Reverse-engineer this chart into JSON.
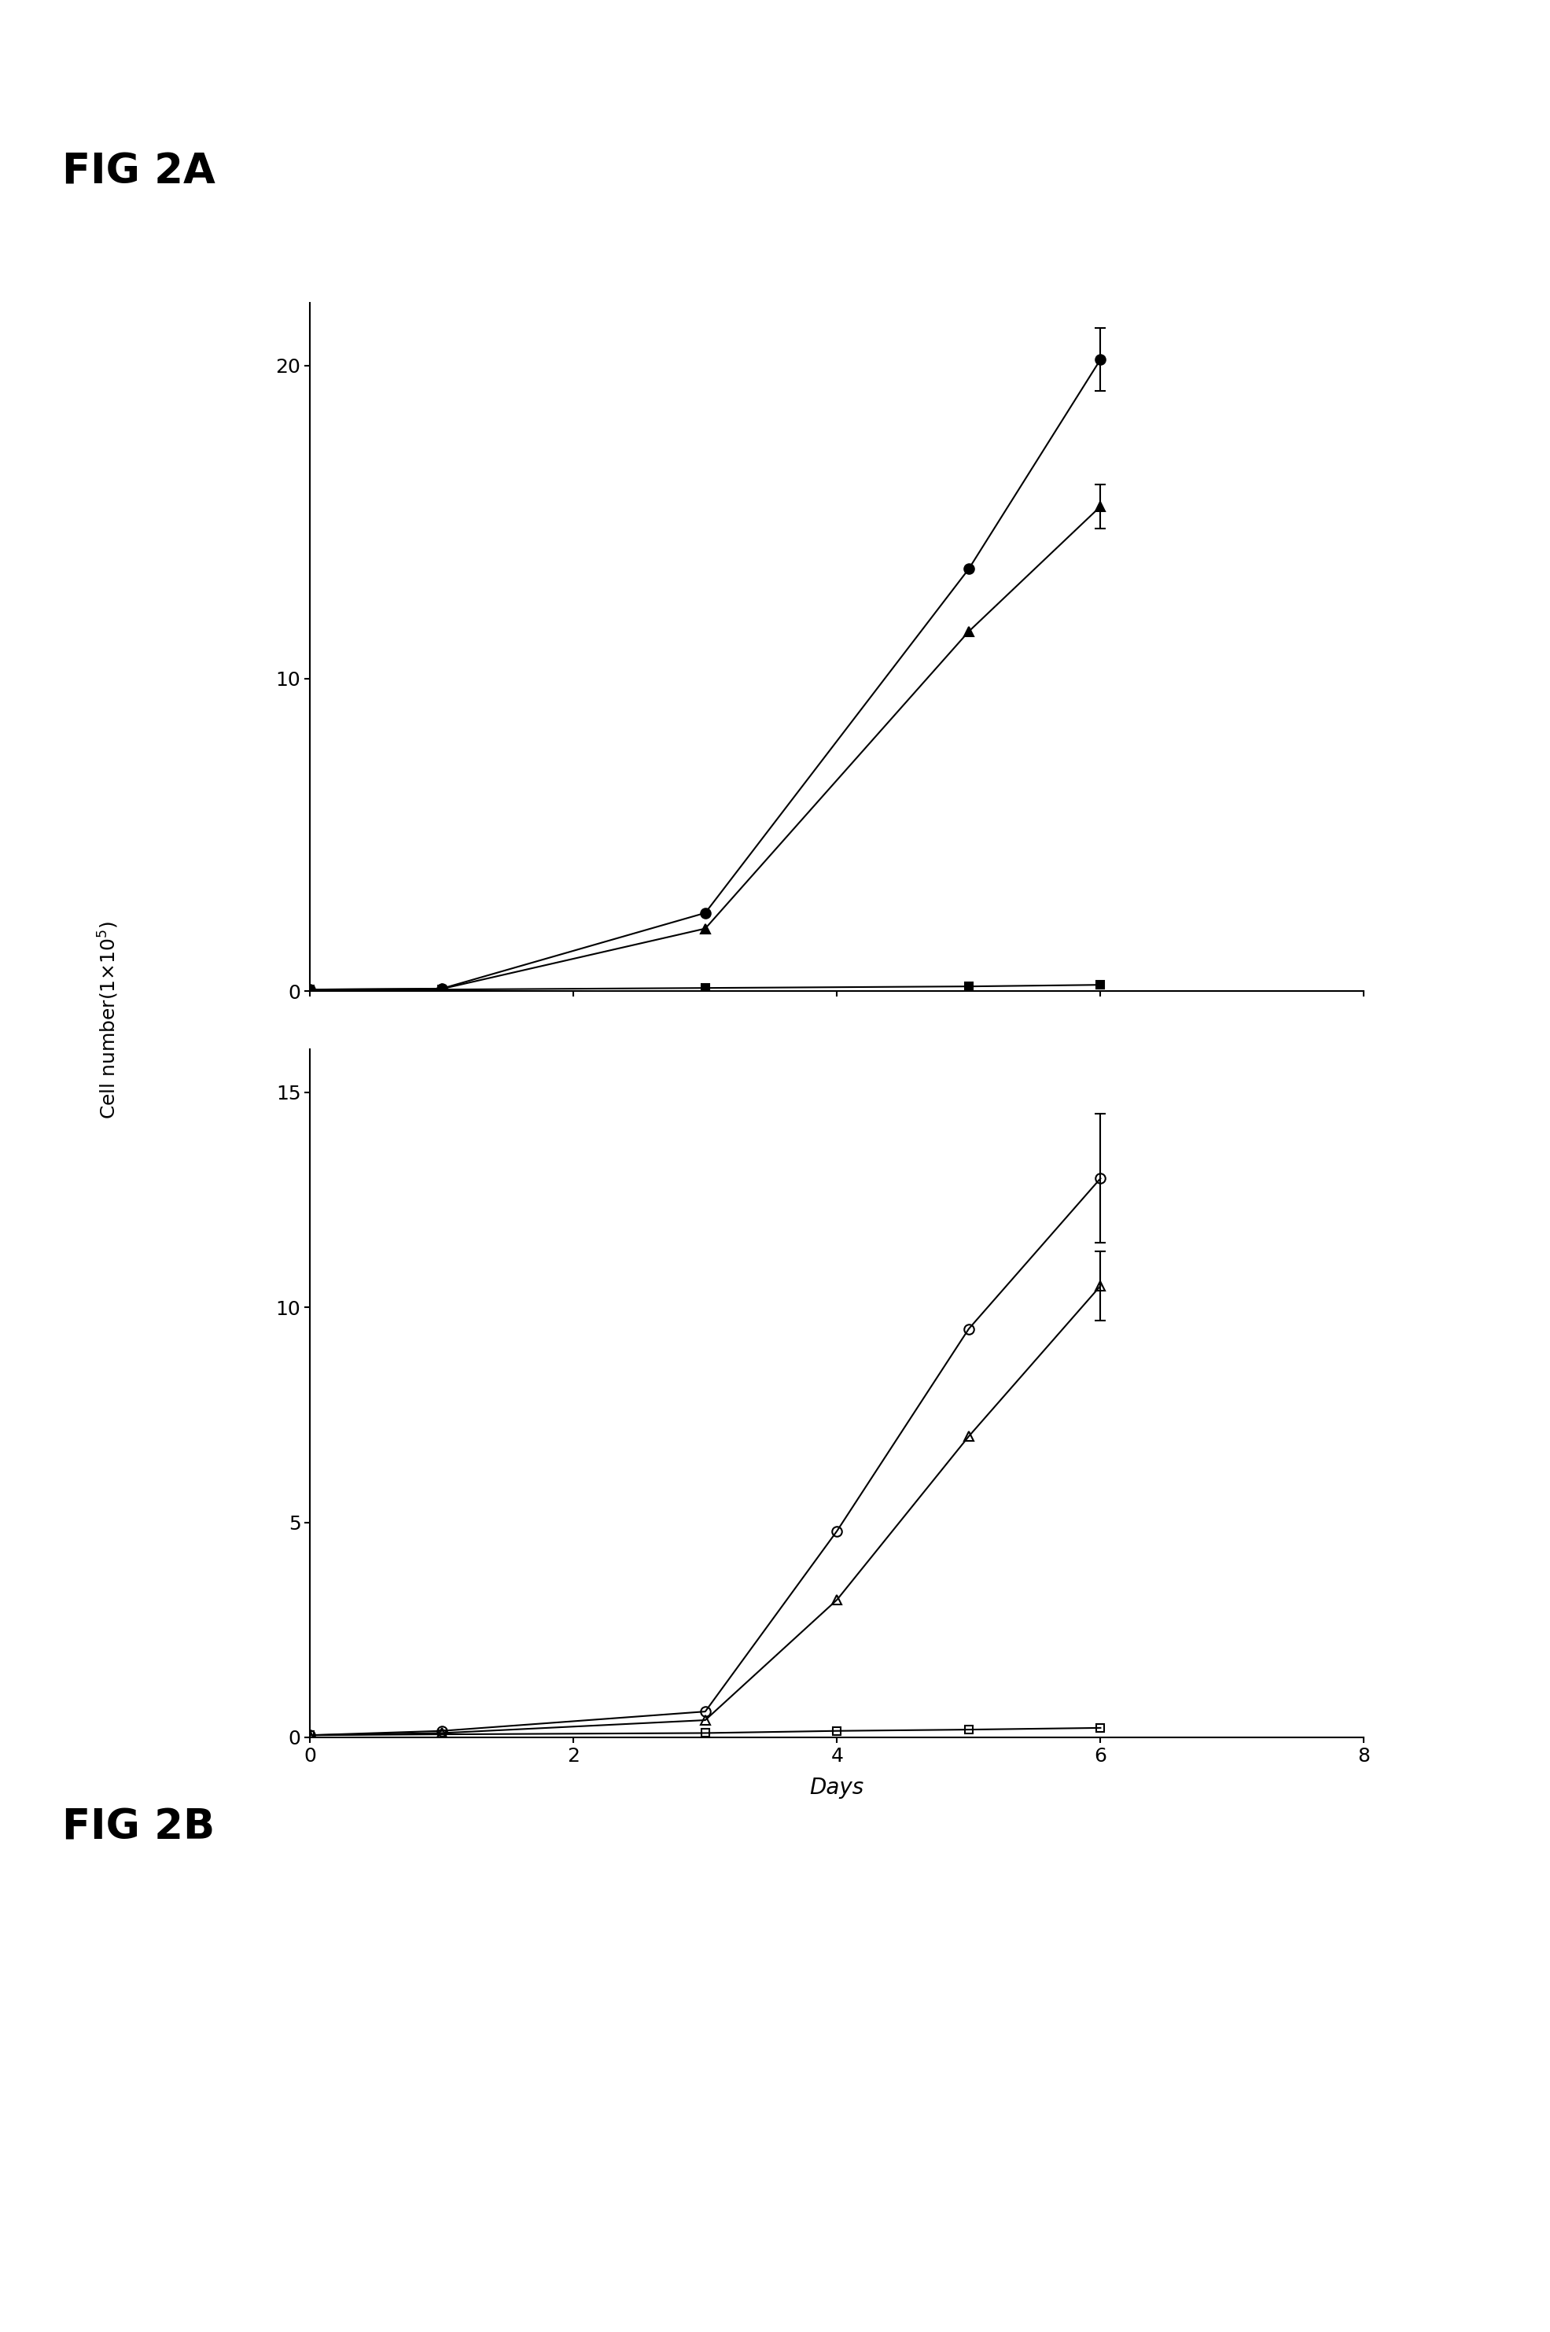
{
  "fig_label_top": "FIG 2A",
  "fig_label_bottom": "FIG 2B",
  "ylabel": "Cell number(1x10$^{5}$)",
  "xlabel": "Days",
  "top": {
    "xlim": [
      0,
      8
    ],
    "ylim": [
      0,
      22
    ],
    "yticks": [
      0,
      10,
      20
    ],
    "xticks": [
      0,
      2,
      4,
      6,
      8
    ],
    "series": [
      {
        "x": [
          0,
          1,
          3,
          5,
          6
        ],
        "y": [
          0.05,
          0.08,
          2.5,
          13.5,
          20.2
        ],
        "yerr": [
          null,
          null,
          null,
          null,
          1.0
        ],
        "marker": "o",
        "fillstyle": "full",
        "color": "black",
        "markersize": 9,
        "linewidth": 1.5
      },
      {
        "x": [
          0,
          1,
          3,
          5,
          6
        ],
        "y": [
          0.05,
          0.07,
          2.0,
          11.5,
          15.5
        ],
        "yerr": [
          null,
          null,
          null,
          null,
          0.7
        ],
        "marker": "^",
        "fillstyle": "full",
        "color": "black",
        "markersize": 9,
        "linewidth": 1.5
      },
      {
        "x": [
          0,
          1,
          3,
          5,
          6
        ],
        "y": [
          0.05,
          0.05,
          0.1,
          0.15,
          0.2
        ],
        "yerr": [
          null,
          null,
          null,
          null,
          null
        ],
        "marker": "s",
        "fillstyle": "full",
        "color": "black",
        "markersize": 7,
        "linewidth": 1.5
      }
    ]
  },
  "bottom": {
    "xlim": [
      0,
      8
    ],
    "ylim": [
      0,
      16
    ],
    "yticks": [
      0,
      5,
      10,
      15
    ],
    "xticks": [
      0,
      2,
      4,
      6,
      8
    ],
    "series": [
      {
        "x": [
          0,
          1,
          3,
          4,
          5,
          6
        ],
        "y": [
          0.05,
          0.15,
          0.6,
          4.8,
          9.5,
          13.0
        ],
        "yerr": [
          null,
          null,
          null,
          null,
          null,
          1.5
        ],
        "marker": "o",
        "fillstyle": "none",
        "color": "black",
        "markersize": 9,
        "linewidth": 1.5
      },
      {
        "x": [
          0,
          1,
          3,
          4,
          5,
          6
        ],
        "y": [
          0.05,
          0.1,
          0.4,
          3.2,
          7.0,
          10.5
        ],
        "yerr": [
          null,
          null,
          null,
          null,
          null,
          0.8
        ],
        "marker": "^",
        "fillstyle": "none",
        "color": "black",
        "markersize": 9,
        "linewidth": 1.5
      },
      {
        "x": [
          0,
          1,
          3,
          4,
          5,
          6
        ],
        "y": [
          0.05,
          0.07,
          0.1,
          0.15,
          0.18,
          0.22
        ],
        "yerr": [
          null,
          null,
          null,
          null,
          null,
          null
        ],
        "marker": "s",
        "fillstyle": "none",
        "color": "black",
        "markersize": 7,
        "linewidth": 1.5
      }
    ]
  }
}
